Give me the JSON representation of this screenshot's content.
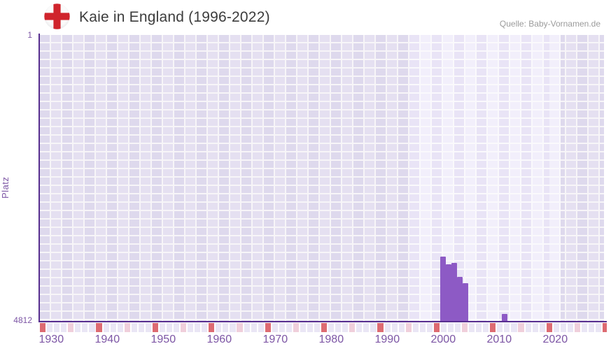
{
  "header": {
    "title": "Kaie in England (1996-2022)",
    "source": "Quelle: Baby-Vornamen.de",
    "flag": "england-flag"
  },
  "y_axis": {
    "title": "Platz",
    "top_tick": "1",
    "bottom_tick": "4812"
  },
  "x_axis": {
    "tick_years": [
      1930,
      1940,
      1950,
      1960,
      1970,
      1980,
      1990,
      2000,
      2010,
      2020
    ]
  },
  "chart_data": {
    "type": "bar",
    "title": "Kaie in England (1996-2022)",
    "xlabel": "",
    "ylabel": "Platz",
    "x": [
      2000,
      2001,
      2002,
      2003,
      2004,
      2011
    ],
    "values": [
      3720,
      3845,
      3820,
      4055,
      4170,
      4685
    ],
    "xlim": [
      1928,
      2028.75
    ],
    "ylim": [
      1,
      4812
    ],
    "y_axis_inverted": true,
    "grid": true,
    "legend": false,
    "highlight_band_years": [
      1994,
      2021
    ]
  },
  "colors": {
    "bar": "#8d5ac5",
    "axis": "#572e8f",
    "tick_text": "#7d56a5",
    "title_text": "#3c3c3c",
    "source_text": "#9b9b9b",
    "flag_red": "#d0242c",
    "strip_red": "#dd6b72",
    "strip_pink": "#f0cfdb",
    "strip_lav": "#eae6f5"
  },
  "decorations": {
    "strip_cycle": [
      "red",
      "lav",
      "lav",
      "lav",
      "pink",
      "lav",
      "lav",
      "lav"
    ],
    "strip_cell_count": 81
  }
}
